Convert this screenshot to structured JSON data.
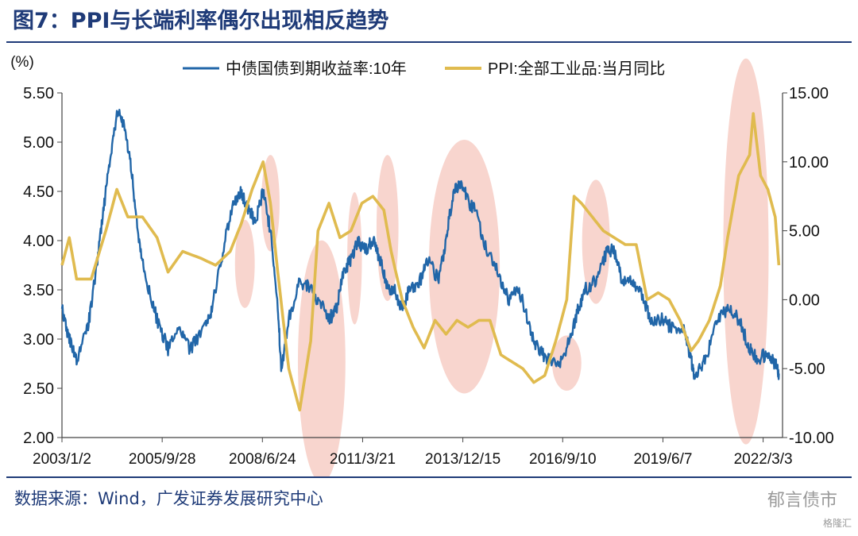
{
  "figure": {
    "title": "图7：PPI与长端利率偶尔出现相反趋势",
    "source": "数据来源：Wind，广发证券发展研究中心",
    "watermark": "郁言债市",
    "watermark_small": "格隆汇"
  },
  "chart_data": {
    "type": "line",
    "left_axis": {
      "unit_label": "(%)",
      "ylim": [
        2.0,
        5.5
      ],
      "ticks": [
        "2.00",
        "2.50",
        "3.00",
        "3.50",
        "4.00",
        "4.50",
        "5.00",
        "5.50"
      ]
    },
    "right_axis": {
      "ylim": [
        -10,
        15
      ],
      "ticks": [
        "-10.00",
        "-5.00",
        "0.00",
        "5.00",
        "10.00",
        "15.00"
      ]
    },
    "x_axis": {
      "range": [
        2003.0,
        2022.7
      ],
      "ticks": [
        {
          "label": "2003/1/2",
          "x": 2003.0
        },
        {
          "label": "2005/9/28",
          "x": 2005.74
        },
        {
          "label": "2008/6/24",
          "x": 2008.48
        },
        {
          "label": "2011/3/21",
          "x": 2011.22
        },
        {
          "label": "2013/12/15",
          "x": 2013.96
        },
        {
          "label": "2016/9/10",
          "x": 2016.69
        },
        {
          "label": "2019/6/7",
          "x": 2019.43
        },
        {
          "label": "2022/3/3",
          "x": 2022.17
        }
      ]
    },
    "legend_position": "top",
    "grid": false,
    "colors": {
      "bond": "#2166a8",
      "ppi": "#e0bb4f",
      "highlight": "#f4b9ae",
      "axis": "#444444"
    },
    "series": [
      {
        "name": "中债国债到期收益率:10年",
        "axis": "left",
        "x": [
          2003.0,
          2003.2,
          2003.4,
          2003.7,
          2003.9,
          2004.1,
          2004.3,
          2004.5,
          2004.7,
          2004.9,
          2005.1,
          2005.3,
          2005.6,
          2005.9,
          2006.2,
          2006.5,
          2006.9,
          2007.1,
          2007.4,
          2007.7,
          2007.9,
          2008.1,
          2008.3,
          2008.5,
          2008.7,
          2008.9,
          2009.0,
          2009.2,
          2009.5,
          2009.8,
          2010.0,
          2010.3,
          2010.5,
          2010.7,
          2010.9,
          2011.1,
          2011.3,
          2011.5,
          2011.7,
          2011.9,
          2012.1,
          2012.3,
          2012.5,
          2012.8,
          2013.0,
          2013.3,
          2013.5,
          2013.7,
          2013.9,
          2014.1,
          2014.3,
          2014.6,
          2014.9,
          2015.2,
          2015.5,
          2015.8,
          2016.0,
          2016.3,
          2016.6,
          2016.9,
          2017.1,
          2017.3,
          2017.6,
          2017.9,
          2018.1,
          2018.3,
          2018.6,
          2018.9,
          2019.1,
          2019.4,
          2019.7,
          2020.0,
          2020.2,
          2020.3,
          2020.6,
          2020.9,
          2021.2,
          2021.5,
          2021.8,
          2022.0,
          2022.3,
          2022.5,
          2022.6
        ],
        "values": [
          3.3,
          3.0,
          2.8,
          3.1,
          3.6,
          4.2,
          4.8,
          5.3,
          5.2,
          4.7,
          4.0,
          3.6,
          3.2,
          2.9,
          3.1,
          2.9,
          3.1,
          3.3,
          3.9,
          4.4,
          4.5,
          4.3,
          4.2,
          4.5,
          4.1,
          3.3,
          2.7,
          3.2,
          3.6,
          3.5,
          3.4,
          3.2,
          3.3,
          3.7,
          3.8,
          4.0,
          3.9,
          4.0,
          3.8,
          3.5,
          3.5,
          3.3,
          3.5,
          3.6,
          3.8,
          3.6,
          4.0,
          4.5,
          4.6,
          4.4,
          4.3,
          3.9,
          3.7,
          3.4,
          3.5,
          3.1,
          2.9,
          2.8,
          2.75,
          3.0,
          3.3,
          3.5,
          3.6,
          3.9,
          3.9,
          3.6,
          3.6,
          3.4,
          3.2,
          3.2,
          3.1,
          3.1,
          2.8,
          2.6,
          2.8,
          3.2,
          3.3,
          3.2,
          2.9,
          2.8,
          2.85,
          2.75,
          2.65
        ]
      },
      {
        "name": "PPI:全部工业品:当月同比",
        "axis": "right",
        "x": [
          2003.0,
          2003.2,
          2003.4,
          2003.8,
          2004.2,
          2004.5,
          2004.8,
          2005.2,
          2005.6,
          2005.9,
          2006.3,
          2006.8,
          2007.2,
          2007.6,
          2007.9,
          2008.2,
          2008.5,
          2008.7,
          2008.9,
          2009.2,
          2009.5,
          2009.8,
          2010.0,
          2010.3,
          2010.6,
          2010.9,
          2011.2,
          2011.5,
          2011.8,
          2012.0,
          2012.3,
          2012.6,
          2012.9,
          2013.2,
          2013.5,
          2013.8,
          2014.1,
          2014.4,
          2014.7,
          2015.0,
          2015.3,
          2015.6,
          2015.9,
          2016.2,
          2016.5,
          2016.8,
          2017.0,
          2017.2,
          2017.5,
          2017.8,
          2018.1,
          2018.4,
          2018.7,
          2019.0,
          2019.3,
          2019.6,
          2019.9,
          2020.2,
          2020.4,
          2020.7,
          2021.0,
          2021.2,
          2021.5,
          2021.8,
          2021.9,
          2022.1,
          2022.3,
          2022.5,
          2022.6
        ],
        "values": [
          2.5,
          4.5,
          1.5,
          1.5,
          5.0,
          8.0,
          6.0,
          6.0,
          4.5,
          2.0,
          3.5,
          3.0,
          2.5,
          3.5,
          5.5,
          8.0,
          10.0,
          7.0,
          2.0,
          -5.0,
          -8.0,
          -3.0,
          5.0,
          7.0,
          4.5,
          5.0,
          7.0,
          7.5,
          6.5,
          3.5,
          0.0,
          -2.0,
          -3.5,
          -1.5,
          -2.5,
          -1.5,
          -2.0,
          -1.5,
          -1.5,
          -4.0,
          -4.5,
          -5.0,
          -6.0,
          -5.5,
          -3.0,
          0.0,
          7.5,
          7.0,
          6.0,
          5.0,
          4.5,
          4.0,
          4.0,
          0.0,
          0.5,
          0.0,
          -1.5,
          -3.7,
          -3.0,
          -1.5,
          1.0,
          4.5,
          9.0,
          10.5,
          13.5,
          9.0,
          8.0,
          6.0,
          2.5
        ]
      }
    ],
    "highlights": [
      {
        "cx": 2008.0,
        "cy": 2.6,
        "rx": 0.27,
        "ry": 3.2
      },
      {
        "cx": 2008.7,
        "cy": 7.0,
        "rx": 0.25,
        "ry": 3.5
      },
      {
        "cx": 2010.1,
        "cy": -4.5,
        "rx": 0.65,
        "ry": 8.8
      },
      {
        "cx": 2011.0,
        "cy": 3.0,
        "rx": 0.2,
        "ry": 4.8
      },
      {
        "cx": 2011.9,
        "cy": 5.2,
        "rx": 0.3,
        "ry": 5.3
      },
      {
        "cx": 2014.0,
        "cy": 2.4,
        "rx": 0.97,
        "ry": 9.2
      },
      {
        "cx": 2016.8,
        "cy": -4.6,
        "rx": 0.4,
        "ry": 2.0
      },
      {
        "cx": 2017.6,
        "cy": 4.2,
        "rx": 0.38,
        "ry": 4.5
      },
      {
        "cx": 2021.7,
        "cy": 3.5,
        "rx": 0.62,
        "ry": 14.0
      }
    ]
  }
}
